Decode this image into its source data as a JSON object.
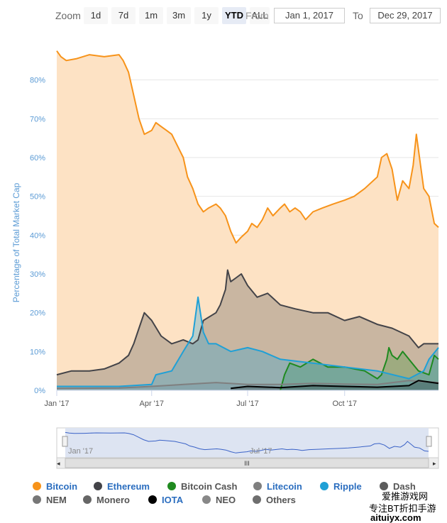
{
  "toolbar": {
    "zoom_label": "Zoom",
    "buttons": [
      "1d",
      "7d",
      "1m",
      "3m",
      "1y",
      "YTD",
      "ALL"
    ],
    "active": "YTD",
    "from_label": "From",
    "from_value": "Jan 1, 2017",
    "to_label": "To",
    "to_value": "Dec 29, 2017"
  },
  "chart_data": {
    "type": "area",
    "ylabel": "Percentage of Total Market Cap",
    "xlabel": "",
    "x_range": [
      "2017-01-01",
      "2017-12-29"
    ],
    "ylim": [
      0,
      90
    ],
    "ytick_labels": [
      "0%",
      "10%",
      "20%",
      "30%",
      "40%",
      "50%",
      "60%",
      "70%",
      "80%"
    ],
    "xtick_labels": [
      "Jan '17",
      "Apr '17",
      "Jul '17",
      "Oct '17"
    ],
    "grid": true,
    "series": [
      {
        "name": "Bitcoin",
        "color": "#f7931a",
        "x": [
          "2017-01-01",
          "2017-01-05",
          "2017-01-10",
          "2017-01-20",
          "2017-02-01",
          "2017-02-15",
          "2017-03-01",
          "2017-03-05",
          "2017-03-10",
          "2017-03-15",
          "2017-03-20",
          "2017-03-25",
          "2017-04-01",
          "2017-04-05",
          "2017-04-10",
          "2017-04-15",
          "2017-04-20",
          "2017-05-01",
          "2017-05-05",
          "2017-05-10",
          "2017-05-15",
          "2017-05-20",
          "2017-05-25",
          "2017-06-01",
          "2017-06-05",
          "2017-06-10",
          "2017-06-15",
          "2017-06-20",
          "2017-06-25",
          "2017-07-01",
          "2017-07-05",
          "2017-07-10",
          "2017-07-15",
          "2017-07-20",
          "2017-07-25",
          "2017-08-01",
          "2017-08-05",
          "2017-08-10",
          "2017-08-15",
          "2017-08-20",
          "2017-08-25",
          "2017-09-01",
          "2017-09-10",
          "2017-09-20",
          "2017-10-01",
          "2017-10-10",
          "2017-10-20",
          "2017-11-01",
          "2017-11-05",
          "2017-11-10",
          "2017-11-15",
          "2017-11-20",
          "2017-11-25",
          "2017-12-01",
          "2017-12-05",
          "2017-12-08",
          "2017-12-12",
          "2017-12-15",
          "2017-12-20",
          "2017-12-25",
          "2017-12-29"
        ],
        "values": [
          87.5,
          86,
          85,
          85.5,
          86.5,
          86,
          86.5,
          85,
          82,
          76,
          70,
          66,
          67,
          69,
          68,
          67,
          66,
          60,
          55,
          52,
          48,
          46,
          47,
          48,
          47,
          45,
          41,
          38,
          39.5,
          41,
          43,
          42,
          44,
          47,
          45,
          47,
          48,
          46,
          47,
          46,
          44,
          46,
          47,
          48,
          49,
          50,
          52,
          55,
          60,
          61,
          57,
          49,
          54,
          52,
          58,
          66,
          58,
          52,
          50,
          43,
          42
        ]
      },
      {
        "name": "Ethereum",
        "color": "#434348",
        "x": [
          "2017-01-01",
          "2017-01-15",
          "2017-02-01",
          "2017-02-15",
          "2017-03-01",
          "2017-03-10",
          "2017-03-15",
          "2017-03-20",
          "2017-03-25",
          "2017-04-01",
          "2017-04-10",
          "2017-04-20",
          "2017-05-01",
          "2017-05-10",
          "2017-05-15",
          "2017-05-20",
          "2017-06-01",
          "2017-06-05",
          "2017-06-10",
          "2017-06-12",
          "2017-06-15",
          "2017-06-20",
          "2017-06-25",
          "2017-07-01",
          "2017-07-10",
          "2017-07-20",
          "2017-08-01",
          "2017-08-15",
          "2017-09-01",
          "2017-09-15",
          "2017-10-01",
          "2017-10-15",
          "2017-11-01",
          "2017-11-15",
          "2017-12-01",
          "2017-12-10",
          "2017-12-15",
          "2017-12-20",
          "2017-12-29"
        ],
        "values": [
          4,
          5,
          5,
          5.5,
          7,
          9,
          12,
          16,
          20,
          18,
          14,
          12,
          13,
          12,
          13,
          18,
          20,
          22,
          26,
          31,
          28,
          29,
          30,
          27,
          24,
          25,
          22,
          21,
          20,
          20,
          18,
          19,
          17,
          16,
          14,
          11,
          12,
          12,
          12
        ]
      },
      {
        "name": "Bitcoin Cash",
        "color": "#1f8a1f",
        "x": [
          "2017-08-01",
          "2017-08-05",
          "2017-08-10",
          "2017-08-20",
          "2017-09-01",
          "2017-09-15",
          "2017-10-01",
          "2017-10-20",
          "2017-11-01",
          "2017-11-05",
          "2017-11-10",
          "2017-11-12",
          "2017-11-15",
          "2017-11-20",
          "2017-11-25",
          "2017-12-01",
          "2017-12-10",
          "2017-12-20",
          "2017-12-25",
          "2017-12-29"
        ],
        "values": [
          0,
          4,
          7,
          6,
          8,
          6,
          6,
          5,
          3,
          4,
          8,
          11,
          9,
          8,
          10,
          8,
          5,
          4,
          9,
          8
        ]
      },
      {
        "name": "Litecoin",
        "color": "#7f7f7f",
        "x": [
          "2017-01-01",
          "2017-03-01",
          "2017-04-01",
          "2017-05-01",
          "2017-06-01",
          "2017-07-01",
          "2017-08-01",
          "2017-09-01",
          "2017-10-01",
          "2017-11-01",
          "2017-12-01",
          "2017-12-29"
        ],
        "values": [
          0.5,
          0.6,
          1,
          1.5,
          2,
          1.5,
          1.5,
          1.8,
          1.6,
          1.5,
          2.5,
          2
        ]
      },
      {
        "name": "Ripple",
        "color": "#1fa0d6",
        "x": [
          "2017-01-01",
          "2017-02-01",
          "2017-03-01",
          "2017-04-01",
          "2017-04-05",
          "2017-04-20",
          "2017-05-01",
          "2017-05-10",
          "2017-05-15",
          "2017-05-20",
          "2017-05-25",
          "2017-06-01",
          "2017-06-15",
          "2017-07-01",
          "2017-07-15",
          "2017-08-01",
          "2017-09-01",
          "2017-10-01",
          "2017-11-01",
          "2017-12-01",
          "2017-12-15",
          "2017-12-20",
          "2017-12-29"
        ],
        "values": [
          1,
          1,
          1,
          1.5,
          4,
          5,
          10,
          14,
          24,
          15,
          12,
          12,
          10,
          11,
          10,
          8,
          7,
          6,
          5,
          3,
          5,
          8,
          11
        ]
      },
      {
        "name": "Dash",
        "color": "#5c5c5c",
        "x": [],
        "values": []
      },
      {
        "name": "NEM",
        "color": "#777777",
        "x": [],
        "values": []
      },
      {
        "name": "Monero",
        "color": "#666666",
        "x": [],
        "values": []
      },
      {
        "name": "IOTA",
        "color": "#000000",
        "x": [
          "2017-06-15",
          "2017-07-01",
          "2017-08-01",
          "2017-09-01",
          "2017-10-01",
          "2017-11-01",
          "2017-12-01",
          "2017-12-10",
          "2017-12-29"
        ],
        "values": [
          0.5,
          1,
          0.7,
          1.2,
          1,
          0.8,
          1.2,
          2.5,
          1.8
        ]
      },
      {
        "name": "NEO",
        "color": "#888888",
        "x": [],
        "values": []
      },
      {
        "name": "Others",
        "color": "#6e6e6e",
        "x": [],
        "values": []
      }
    ],
    "navigator": {
      "tick_labels": [
        "Jan '17",
        "Jul '17"
      ],
      "scroll_label": "III"
    }
  },
  "colors": {
    "bitcoin_fill": "#fde2c4",
    "grid": "#e6e6e6",
    "axis_label": "#5b9bd5"
  },
  "watermark": {
    "line1": "爱推游戏网",
    "line2": "专注BT折扣手游",
    "line3": "aituiyx.com"
  }
}
